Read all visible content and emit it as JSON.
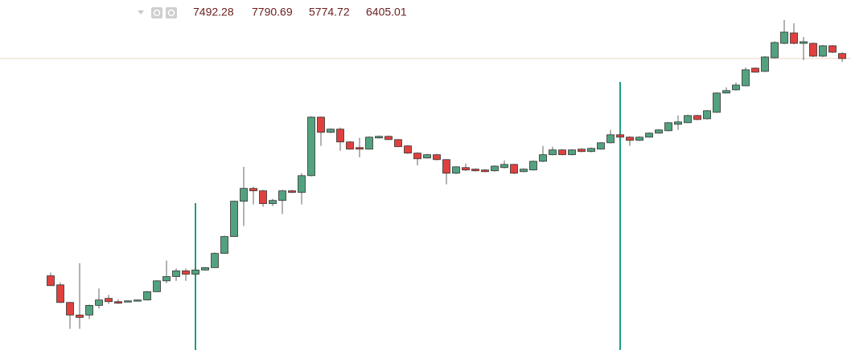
{
  "chart_data": {
    "type": "candlestick",
    "log_scale": true,
    "ylim": [
      0.7,
      40000
    ],
    "up_color": "#53a27f",
    "down_color": "#e0413e",
    "open": [
      7.14,
      5.38,
      3.1,
      2.09,
      2.09,
      2.83,
      3.52,
      3.18,
      3.18,
      3.26,
      3.35,
      4.34,
      6.1,
      6.97,
      8.34,
      7.51,
      8.56,
      9.22,
      14.4,
      24.4,
      73.6,
      110,
      102,
      68.3,
      75.5,
      102,
      97,
      164,
      1023,
      636,
      703,
      471,
      395,
      376,
      534,
      561,
      507,
      416,
      332,
      285,
      316,
      271,
      177,
      211,
      201,
      196,
      191,
      211,
      233,
      186,
      196,
      257,
      316,
      367,
      316,
      376,
      349,
      376,
      459,
      590,
      547,
      495,
      547,
      620,
      669,
      818,
      860,
      1076,
      973,
      1190,
      2176,
      2406,
      2727,
      4736,
      4285,
      6562,
      10297,
      14275,
      10297,
      10297,
      6900,
      9556,
      7492.28
    ],
    "high": [
      7.9,
      5.8,
      3.15,
      10.6,
      2.9,
      4.8,
      3.93,
      3.43,
      3.3,
      3.4,
      4.45,
      6.2,
      11.5,
      9.0,
      9.0,
      9.2,
      9.4,
      14.8,
      25,
      75,
      216,
      116,
      105,
      79.3,
      105,
      105,
      177,
      1050,
      1040,
      720,
      740,
      480,
      534,
      560,
      575,
      575,
      515,
      425,
      340,
      325,
      325,
      275,
      220,
      239,
      205,
      200,
      226,
      264,
      238,
      206,
      263,
      416,
      406,
      375,
      375,
      385,
      395,
      470,
      686,
      605,
      560,
      560,
      635,
      700,
      880,
      1076,
      1100,
      1100,
      1280,
      2230,
      2594,
      3016,
      4854,
      4854,
      6900,
      11000,
      21344,
      19312,
      12590,
      10600,
      9800,
      9800,
      7790.69
    ],
    "low": [
      5.2,
      3.03,
      1.36,
      1.36,
      1.84,
      2.56,
      2.95,
      2.95,
      3.1,
      3.2,
      3.3,
      4.3,
      5.66,
      6.1,
      6.1,
      7.4,
      8.4,
      9.1,
      14.2,
      24,
      33.9,
      66.6,
      61.8,
      63.3,
      49.3,
      95,
      66.6,
      160,
      416,
      620,
      357,
      370,
      292,
      370,
      525,
      500,
      400,
      325,
      227,
      280,
      265,
      125,
      172,
      190,
      186,
      182,
      186,
      205,
      172,
      182,
      192,
      250,
      310,
      310,
      310,
      340,
      340,
      370,
      450,
      535,
      416,
      485,
      540,
      610,
      655,
      686,
      850,
      930,
      950,
      1170,
      2150,
      2350,
      2700,
      4100,
      4200,
      6400,
      10000,
      10000,
      6086,
      6700,
      6700,
      7600,
      5774.72
    ],
    "close": [
      5.25,
      3.1,
      2.09,
      1.94,
      2.83,
      3.35,
      3.18,
      3.03,
      3.26,
      3.35,
      4.34,
      6.1,
      6.97,
      8.34,
      7.51,
      8.56,
      9.22,
      14.4,
      24.4,
      73.6,
      110,
      102,
      68.3,
      75.5,
      102,
      97,
      164,
      1023,
      636,
      703,
      471,
      376,
      376,
      547,
      561,
      507,
      406,
      332,
      278,
      316,
      271,
      177,
      216,
      196,
      191,
      186,
      221,
      233,
      177,
      201,
      257,
      316,
      367,
      316,
      367,
      349,
      385,
      459,
      590,
      547,
      495,
      547,
      620,
      686,
      860,
      882,
      1076,
      950,
      1252,
      2176,
      2348,
      2795,
      4505,
      4180,
      6728,
      10570,
      14640,
      10297,
      10832,
      6900,
      9556,
      7815,
      6405.01
    ]
  }
}
